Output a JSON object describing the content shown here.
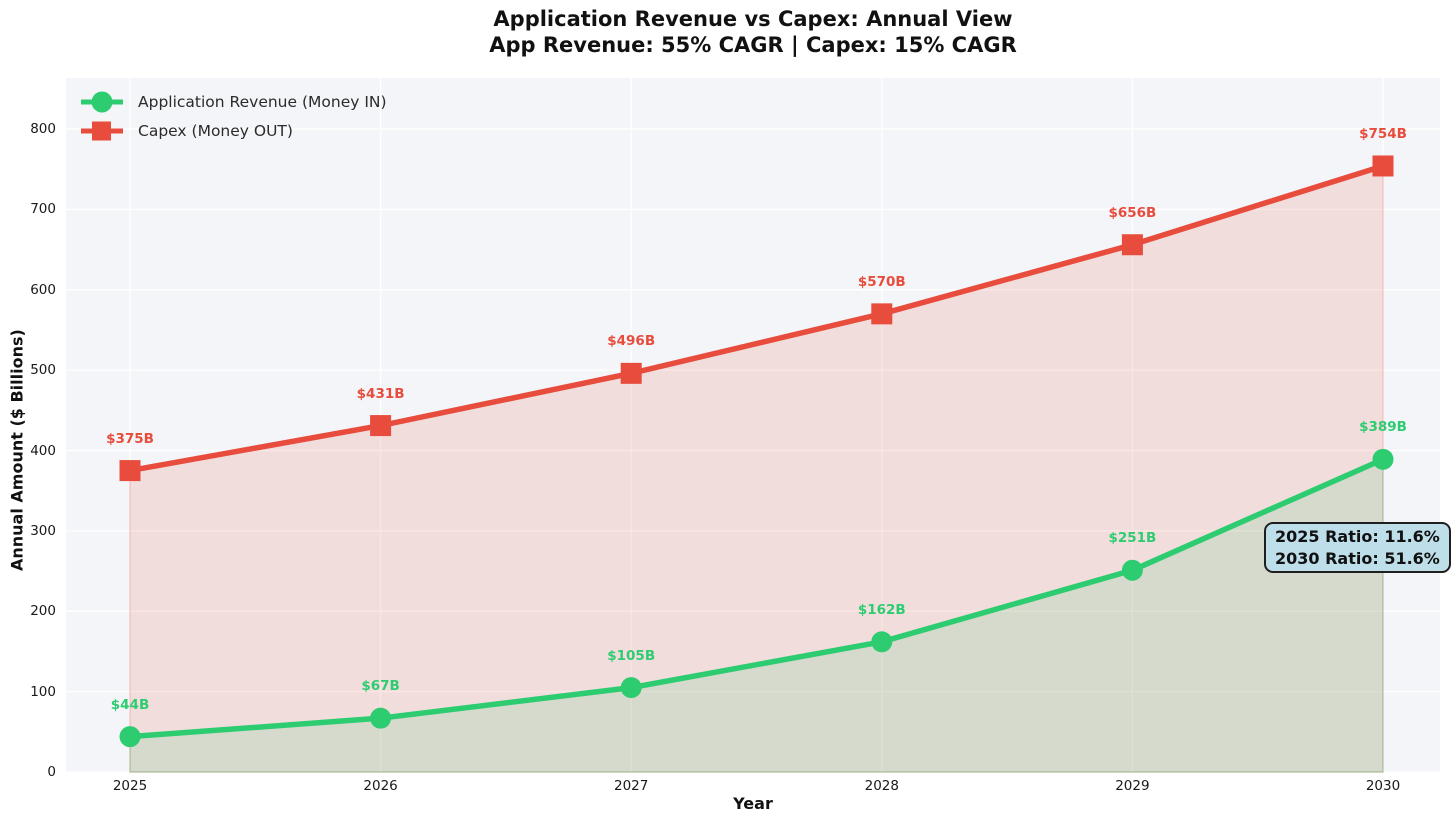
{
  "title": {
    "line1": "Application Revenue vs Capex: Annual View",
    "line2": "App Revenue: 55% CAGR | Capex: 15% CAGR"
  },
  "chart_data": {
    "type": "line",
    "x": [
      2025,
      2026,
      2027,
      2028,
      2029,
      2030
    ],
    "xlabel": "Year",
    "ylabel": "Annual Amount ($ Billions)",
    "ylim": [
      0,
      860
    ],
    "yticks": [
      0,
      100,
      200,
      300,
      400,
      500,
      600,
      700,
      800
    ],
    "grid": true,
    "legend_position": "upper left",
    "series": [
      {
        "name": "Application Revenue (Money IN)",
        "values": [
          44,
          67,
          105,
          162,
          251,
          389
        ],
        "point_labels": [
          "$44B",
          "$67B",
          "$105B",
          "$162B",
          "$251B",
          "$389B"
        ],
        "color": "#2ecc71",
        "marker": "circle",
        "area_fill": true,
        "fill_opacity": 0.15
      },
      {
        "name": "Capex (Money OUT)",
        "values": [
          375,
          431,
          496,
          570,
          656,
          754
        ],
        "point_labels": [
          "$375B",
          "$431B",
          "$496B",
          "$570B",
          "$656B",
          "$754B"
        ],
        "color": "#e74c3c",
        "marker": "square",
        "area_fill": true,
        "fill_opacity": 0.14
      }
    ]
  },
  "annotation": {
    "line1": "2025 Ratio: 11.6%",
    "line2": "2030 Ratio: 51.6%"
  },
  "colors": {
    "figure_bg": "#ffffff",
    "axes_bg": "#f4f5f9",
    "grid": "#ffffff",
    "revenue": "#2ecc71",
    "capex": "#e74c3c",
    "annotation_bg": "#bedee9",
    "annotation_border": "#1f1f1f",
    "text": "#111111"
  }
}
